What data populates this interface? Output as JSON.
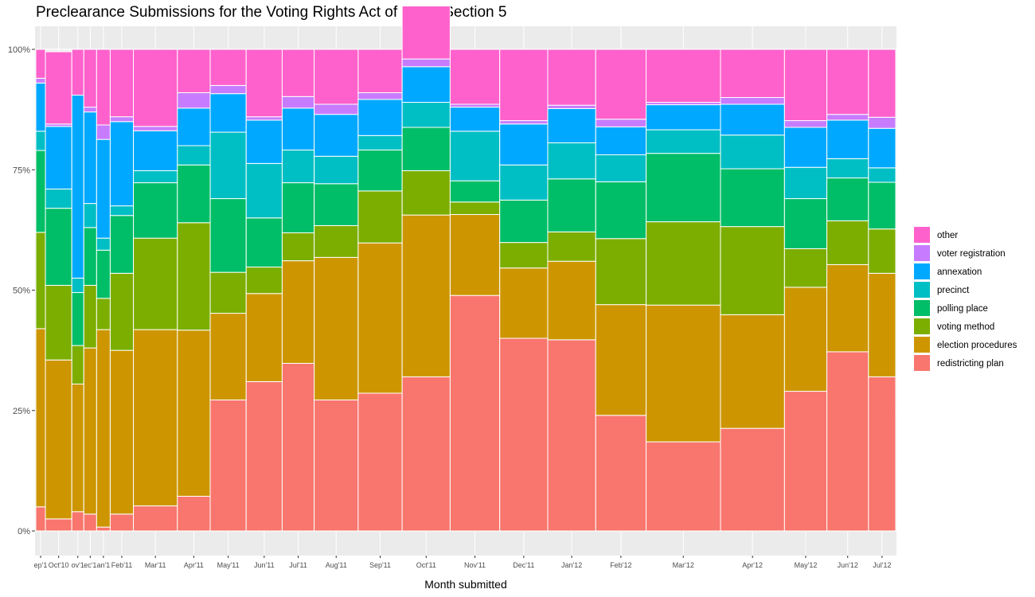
{
  "chart_data": {
    "type": "bar",
    "subtype": "stacked-100-variable-width (mosaic)",
    "title": "Preclearance Submissions for the Voting Rights Act of 1965, Section 5",
    "xlabel": "Month submitted",
    "ylabel": "",
    "y_ticks": [
      "0%",
      "25%",
      "50%",
      "75%",
      "100%"
    ],
    "ylim": [
      0,
      1
    ],
    "grid": true,
    "legend_position": "right",
    "series": [
      {
        "name": "other",
        "color": "#FF61CC"
      },
      {
        "name": "voter registration",
        "color": "#C77CFF"
      },
      {
        "name": "annexation",
        "color": "#00A9FF"
      },
      {
        "name": "precinct",
        "color": "#00BFC4"
      },
      {
        "name": "polling place",
        "color": "#00BE67"
      },
      {
        "name": "voting method",
        "color": "#7CAE00"
      },
      {
        "name": "election procedures",
        "color": "#CD9600"
      },
      {
        "name": "redistricting plan",
        "color": "#F8766D"
      }
    ],
    "stack_order_bottom_to_top": [
      "redistricting plan",
      "election procedures",
      "voting method",
      "polling place",
      "precinct",
      "annexation",
      "voter registration",
      "other"
    ],
    "months": [
      {
        "label": "ep'1",
        "relative_width": 12,
        "shares": [
          0.05,
          0.37,
          0.2,
          0.17,
          0.04,
          0.1,
          0.01,
          0.06
        ]
      },
      {
        "label": "Oct'10",
        "relative_width": 33,
        "shares": [
          0.025,
          0.33,
          0.155,
          0.16,
          0.04,
          0.13,
          0.005,
          0.15
        ]
      },
      {
        "label": "ov'1",
        "relative_width": 15,
        "shares": [
          0.04,
          0.265,
          0.08,
          0.11,
          0.03,
          0.38,
          0.0,
          0.095
        ]
      },
      {
        "label": "ec'1",
        "relative_width": 16,
        "shares": [
          0.035,
          0.345,
          0.13,
          0.12,
          0.05,
          0.19,
          0.01,
          0.12
        ]
      },
      {
        "label": "an'1",
        "relative_width": 17,
        "shares": [
          0.008,
          0.41,
          0.065,
          0.1,
          0.025,
          0.205,
          0.03,
          0.157
        ]
      },
      {
        "label": "Feb'11",
        "relative_width": 29,
        "shares": [
          0.035,
          0.34,
          0.16,
          0.12,
          0.02,
          0.175,
          0.01,
          0.14
        ]
      },
      {
        "label": "Mar'11",
        "relative_width": 55,
        "shares": [
          0.052,
          0.366,
          0.19,
          0.115,
          0.025,
          0.083,
          0.009,
          0.16
        ]
      },
      {
        "label": "Apr'11",
        "relative_width": 41,
        "shares": [
          0.072,
          0.345,
          0.223,
          0.12,
          0.04,
          0.078,
          0.032,
          0.09
        ]
      },
      {
        "label": "May'11",
        "relative_width": 45,
        "shares": [
          0.272,
          0.18,
          0.085,
          0.153,
          0.138,
          0.08,
          0.017,
          0.075
        ]
      },
      {
        "label": "Jun'11",
        "relative_width": 45,
        "shares": [
          0.31,
          0.183,
          0.055,
          0.102,
          0.113,
          0.09,
          0.007,
          0.14
        ]
      },
      {
        "label": "Jul'11",
        "relative_width": 40,
        "shares": [
          0.348,
          0.213,
          0.058,
          0.104,
          0.068,
          0.087,
          0.024,
          0.098
        ]
      },
      {
        "label": "Aug'11",
        "relative_width": 55,
        "shares": [
          0.272,
          0.296,
          0.066,
          0.087,
          0.057,
          0.087,
          0.021,
          0.114
        ]
      },
      {
        "label": "Sep'11",
        "relative_width": 55,
        "shares": [
          0.286,
          0.312,
          0.108,
          0.085,
          0.03,
          0.075,
          0.014,
          0.09
        ]
      },
      {
        "label": "Oct'11",
        "relative_width": 60,
        "shares": [
          0.32,
          0.336,
          0.092,
          0.09,
          0.052,
          0.074,
          0.016,
          0.11
        ]
      },
      {
        "label": "Nov'11",
        "relative_width": 62,
        "shares": [
          0.489,
          0.168,
          0.026,
          0.044,
          0.103,
          0.05,
          0.006,
          0.114
        ]
      },
      {
        "label": "Dec'11",
        "relative_width": 60,
        "shares": [
          0.4,
          0.146,
          0.053,
          0.088,
          0.073,
          0.085,
          0.007,
          0.148
        ]
      },
      {
        "label": "Jan'12",
        "relative_width": 60,
        "shares": [
          0.397,
          0.163,
          0.061,
          0.11,
          0.075,
          0.071,
          0.007,
          0.116
        ]
      },
      {
        "label": "Feb'12",
        "relative_width": 63,
        "shares": [
          0.24,
          0.23,
          0.137,
          0.118,
          0.056,
          0.058,
          0.016,
          0.145
        ]
      },
      {
        "label": "Mar'12",
        "relative_width": 93,
        "shares": [
          0.185,
          0.284,
          0.173,
          0.142,
          0.049,
          0.052,
          0.005,
          0.11
        ]
      },
      {
        "label": "Apr'12",
        "relative_width": 80,
        "shares": [
          0.213,
          0.236,
          0.183,
          0.12,
          0.07,
          0.064,
          0.014,
          0.1
        ]
      },
      {
        "label": "May'12",
        "relative_width": 53,
        "shares": [
          0.29,
          0.216,
          0.08,
          0.104,
          0.065,
          0.083,
          0.014,
          0.148
        ]
      },
      {
        "label": "Jun'12",
        "relative_width": 52,
        "shares": [
          0.372,
          0.181,
          0.091,
          0.089,
          0.04,
          0.08,
          0.012,
          0.135
        ]
      },
      {
        "label": "Jul'12",
        "relative_width": 34,
        "shares": [
          0.32,
          0.215,
          0.092,
          0.097,
          0.03,
          0.082,
          0.023,
          0.141
        ]
      }
    ]
  }
}
